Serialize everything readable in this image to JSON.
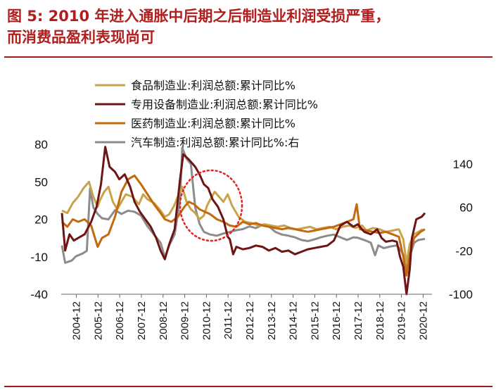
{
  "figure": {
    "title_line1": "图 5: 2010 年进入通胀中后期之后制造业利润受损严重，",
    "title_line2": "而消费品盈利表现尚可"
  },
  "chart_data": {
    "type": "line",
    "title": "图 5: 2010 年进入通胀中后期之后制造业利润受损严重，而消费品盈利表现尚可",
    "xlabel": "",
    "ylabel": "",
    "x_ticks": [
      "2004-12",
      "2005-12",
      "2006-12",
      "2007-12",
      "2008-12",
      "2009-12",
      "2010-12",
      "2011-12",
      "2012-12",
      "2013-12",
      "2014-12",
      "2015-12",
      "2016-12",
      "2017-12",
      "2018-12",
      "2019-12",
      "2020-12"
    ],
    "x_range": [
      2004.25,
      2021.0
    ],
    "ylim_left": [
      -40,
      80
    ],
    "yticks_left": [
      80,
      50,
      20,
      -10,
      -40
    ],
    "ylim_right": [
      -100,
      140
    ],
    "yticks_right": [
      140,
      60,
      -20,
      -100
    ],
    "ytick_labels_left": [
      "80",
      "50",
      "20",
      "-10",
      "-40"
    ],
    "ytick_labels_right": [
      "140",
      "60",
      "-20",
      "-100"
    ],
    "grid": false,
    "legend_position": "top-left",
    "annotation": "red dotted ellipse around 2010-2011",
    "series": [
      {
        "name": "食品制造业:利润总额:累计同比%",
        "color": "#c9a24c",
        "axis": "left",
        "points": [
          [
            2004.25,
            27
          ],
          [
            2004.5,
            25
          ],
          [
            2004.75,
            33
          ],
          [
            2005.0,
            38
          ],
          [
            2005.25,
            45
          ],
          [
            2005.5,
            50
          ],
          [
            2005.7,
            38
          ],
          [
            2005.9,
            30
          ],
          [
            2006.0,
            35
          ],
          [
            2006.2,
            42
          ],
          [
            2006.4,
            46
          ],
          [
            2006.6,
            34
          ],
          [
            2006.8,
            28
          ],
          [
            2007.0,
            34
          ],
          [
            2007.2,
            40
          ],
          [
            2007.5,
            38
          ],
          [
            2007.8,
            32
          ],
          [
            2008.0,
            40
          ],
          [
            2008.2,
            36
          ],
          [
            2008.5,
            33
          ],
          [
            2008.8,
            27
          ],
          [
            2009.0,
            22
          ],
          [
            2009.2,
            24
          ],
          [
            2009.4,
            30
          ],
          [
            2009.6,
            38
          ],
          [
            2009.8,
            46
          ],
          [
            2010.0,
            34
          ],
          [
            2010.2,
            28
          ],
          [
            2010.4,
            25
          ],
          [
            2010.6,
            20
          ],
          [
            2010.8,
            23
          ],
          [
            2010.95,
            31
          ],
          [
            2011.1,
            36
          ],
          [
            2011.3,
            42
          ],
          [
            2011.5,
            38
          ],
          [
            2011.7,
            34
          ],
          [
            2011.9,
            40
          ],
          [
            2012.1,
            31
          ],
          [
            2012.4,
            22
          ],
          [
            2012.7,
            18
          ],
          [
            2013.0,
            17
          ],
          [
            2013.3,
            15
          ],
          [
            2013.6,
            16
          ],
          [
            2013.9,
            15
          ],
          [
            2014.2,
            14
          ],
          [
            2014.5,
            15
          ],
          [
            2014.8,
            13
          ],
          [
            2015.1,
            12
          ],
          [
            2015.4,
            13
          ],
          [
            2015.7,
            14
          ],
          [
            2016.0,
            12
          ],
          [
            2016.3,
            13
          ],
          [
            2016.6,
            14
          ],
          [
            2016.9,
            12
          ],
          [
            2017.2,
            14
          ],
          [
            2017.5,
            15
          ],
          [
            2017.8,
            13
          ],
          [
            2018.1,
            15
          ],
          [
            2018.3,
            11
          ],
          [
            2018.6,
            13
          ],
          [
            2018.9,
            12
          ],
          [
            2019.2,
            10
          ],
          [
            2019.5,
            11
          ],
          [
            2019.8,
            12
          ],
          [
            2020.0,
            4
          ],
          [
            2020.15,
            -15
          ],
          [
            2020.3,
            0
          ],
          [
            2020.5,
            8
          ],
          [
            2020.7,
            10
          ],
          [
            2020.9,
            12
          ]
        ]
      },
      {
        "name": "专用设备制造业:利润总额:累计同比%",
        "color": "#6e1414",
        "axis": "left",
        "points": [
          [
            2004.25,
            25
          ],
          [
            2004.4,
            -5
          ],
          [
            2004.6,
            8
          ],
          [
            2004.8,
            3
          ],
          [
            2005.0,
            5
          ],
          [
            2005.3,
            8
          ],
          [
            2005.6,
            18
          ],
          [
            2005.85,
            30
          ],
          [
            2006.05,
            48
          ],
          [
            2006.25,
            78
          ],
          [
            2006.45,
            62
          ],
          [
            2006.7,
            58
          ],
          [
            2006.9,
            52
          ],
          [
            2007.15,
            56
          ],
          [
            2007.4,
            46
          ],
          [
            2007.6,
            34
          ],
          [
            2007.85,
            26
          ],
          [
            2008.1,
            20
          ],
          [
            2008.35,
            14
          ],
          [
            2008.6,
            5
          ],
          [
            2008.8,
            -5
          ],
          [
            2009.0,
            -12
          ],
          [
            2009.2,
            0
          ],
          [
            2009.45,
            12
          ],
          [
            2009.7,
            52
          ],
          [
            2009.85,
            72
          ],
          [
            2010.1,
            68
          ],
          [
            2010.4,
            62
          ],
          [
            2010.6,
            56
          ],
          [
            2010.8,
            48
          ],
          [
            2011.0,
            45
          ],
          [
            2011.2,
            36
          ],
          [
            2011.45,
            30
          ],
          [
            2011.7,
            20
          ],
          [
            2011.9,
            6
          ],
          [
            2012.0,
            4
          ],
          [
            2012.15,
            -8
          ],
          [
            2012.3,
            -2
          ],
          [
            2012.6,
            -4
          ],
          [
            2012.9,
            -3
          ],
          [
            2013.2,
            -1
          ],
          [
            2013.5,
            -2
          ],
          [
            2013.8,
            -5
          ],
          [
            2014.1,
            -3
          ],
          [
            2014.4,
            -6
          ],
          [
            2014.7,
            -5
          ],
          [
            2015.0,
            -8
          ],
          [
            2015.3,
            -6
          ],
          [
            2015.6,
            -4
          ],
          [
            2015.9,
            -3
          ],
          [
            2016.2,
            -2
          ],
          [
            2016.5,
            -1
          ],
          [
            2016.8,
            3
          ],
          [
            2017.1,
            15
          ],
          [
            2017.4,
            18
          ],
          [
            2017.7,
            14
          ],
          [
            2017.9,
            16
          ],
          [
            2018.2,
            10
          ],
          [
            2018.5,
            8
          ],
          [
            2018.8,
            12
          ],
          [
            2019.0,
            5
          ],
          [
            2019.2,
            2
          ],
          [
            2019.5,
            3
          ],
          [
            2019.7,
            2
          ],
          [
            2019.85,
            -10
          ],
          [
            2020.0,
            -18
          ],
          [
            2020.15,
            -40
          ],
          [
            2020.3,
            -20
          ],
          [
            2020.4,
            5
          ],
          [
            2020.6,
            20
          ],
          [
            2020.85,
            22
          ],
          [
            2021.0,
            25
          ]
        ]
      },
      {
        "name": "医药制造业:利润总额:累计同比%",
        "color": "#c46a0c",
        "axis": "left",
        "points": [
          [
            2004.25,
            18
          ],
          [
            2004.5,
            14
          ],
          [
            2004.75,
            20
          ],
          [
            2005.0,
            18
          ],
          [
            2005.3,
            20
          ],
          [
            2005.6,
            15
          ],
          [
            2005.9,
            -2
          ],
          [
            2006.1,
            5
          ],
          [
            2006.4,
            8
          ],
          [
            2006.7,
            22
          ],
          [
            2007.0,
            42
          ],
          [
            2007.3,
            52
          ],
          [
            2007.6,
            55
          ],
          [
            2007.9,
            48
          ],
          [
            2008.2,
            40
          ],
          [
            2008.5,
            32
          ],
          [
            2008.8,
            25
          ],
          [
            2009.0,
            20
          ],
          [
            2009.3,
            18
          ],
          [
            2009.6,
            22
          ],
          [
            2009.9,
            30
          ],
          [
            2010.1,
            34
          ],
          [
            2010.35,
            32
          ],
          [
            2010.6,
            28
          ],
          [
            2010.85,
            26
          ],
          [
            2011.1,
            24
          ],
          [
            2011.4,
            20
          ],
          [
            2011.7,
            18
          ],
          [
            2012.0,
            15
          ],
          [
            2012.3,
            14
          ],
          [
            2012.6,
            18
          ],
          [
            2012.9,
            16
          ],
          [
            2013.2,
            17
          ],
          [
            2013.5,
            15
          ],
          [
            2013.8,
            14
          ],
          [
            2014.1,
            13
          ],
          [
            2014.4,
            12
          ],
          [
            2014.7,
            13
          ],
          [
            2015.0,
            12
          ],
          [
            2015.3,
            11
          ],
          [
            2015.6,
            10
          ],
          [
            2015.9,
            11
          ],
          [
            2016.2,
            12
          ],
          [
            2016.5,
            13
          ],
          [
            2016.8,
            14
          ],
          [
            2017.1,
            16
          ],
          [
            2017.4,
            18
          ],
          [
            2017.7,
            20
          ],
          [
            2017.85,
            32
          ],
          [
            2018.0,
            12
          ],
          [
            2018.3,
            11
          ],
          [
            2018.6,
            10
          ],
          [
            2018.9,
            9
          ],
          [
            2019.2,
            10
          ],
          [
            2019.5,
            8
          ],
          [
            2019.8,
            6
          ],
          [
            2020.0,
            -10
          ],
          [
            2020.15,
            -25
          ],
          [
            2020.3,
            -8
          ],
          [
            2020.5,
            5
          ],
          [
            2020.8,
            10
          ],
          [
            2021.0,
            12
          ]
        ]
      },
      {
        "name": "汽车制造:利润总额:累计同比%:右",
        "color": "#8c8c8c",
        "axis": "right",
        "points": [
          [
            2004.25,
            -10
          ],
          [
            2004.4,
            -42
          ],
          [
            2004.7,
            -38
          ],
          [
            2004.9,
            -30
          ],
          [
            2005.2,
            -25
          ],
          [
            2005.4,
            -20
          ],
          [
            2005.55,
            95
          ],
          [
            2005.7,
            60
          ],
          [
            2005.9,
            48
          ],
          [
            2006.1,
            40
          ],
          [
            2006.4,
            38
          ],
          [
            2006.7,
            55
          ],
          [
            2007.0,
            48
          ],
          [
            2007.3,
            54
          ],
          [
            2007.6,
            52
          ],
          [
            2007.9,
            45
          ],
          [
            2008.2,
            25
          ],
          [
            2008.5,
            10
          ],
          [
            2008.8,
            -5
          ],
          [
            2009.0,
            -32
          ],
          [
            2009.2,
            -10
          ],
          [
            2009.45,
            10
          ],
          [
            2009.7,
            75
          ],
          [
            2009.8,
            170
          ],
          [
            2010.0,
            150
          ],
          [
            2010.2,
            140
          ],
          [
            2010.4,
            60
          ],
          [
            2010.6,
            30
          ],
          [
            2010.8,
            15
          ],
          [
            2011.1,
            10
          ],
          [
            2011.4,
            8
          ],
          [
            2011.7,
            12
          ],
          [
            2012.0,
            15
          ],
          [
            2012.3,
            18
          ],
          [
            2012.6,
            20
          ],
          [
            2012.9,
            25
          ],
          [
            2013.2,
            22
          ],
          [
            2013.5,
            28
          ],
          [
            2013.8,
            25
          ],
          [
            2014.1,
            15
          ],
          [
            2014.4,
            10
          ],
          [
            2014.7,
            8
          ],
          [
            2015.0,
            5
          ],
          [
            2015.3,
            0
          ],
          [
            2015.6,
            -2
          ],
          [
            2015.9,
            1
          ],
          [
            2016.2,
            5
          ],
          [
            2016.5,
            8
          ],
          [
            2016.8,
            10
          ],
          [
            2017.1,
            5
          ],
          [
            2017.4,
            0
          ],
          [
            2017.7,
            5
          ],
          [
            2017.9,
            4
          ],
          [
            2018.2,
            0
          ],
          [
            2018.5,
            -5
          ],
          [
            2018.7,
            -28
          ],
          [
            2018.85,
            -10
          ],
          [
            2019.1,
            -15
          ],
          [
            2019.4,
            -12
          ],
          [
            2019.7,
            -10
          ],
          [
            2019.9,
            -20
          ],
          [
            2020.05,
            -30
          ],
          [
            2020.2,
            -60
          ],
          [
            2020.3,
            -30
          ],
          [
            2020.5,
            -5
          ],
          [
            2020.7,
            0
          ],
          [
            2021.0,
            2
          ]
        ]
      }
    ]
  }
}
